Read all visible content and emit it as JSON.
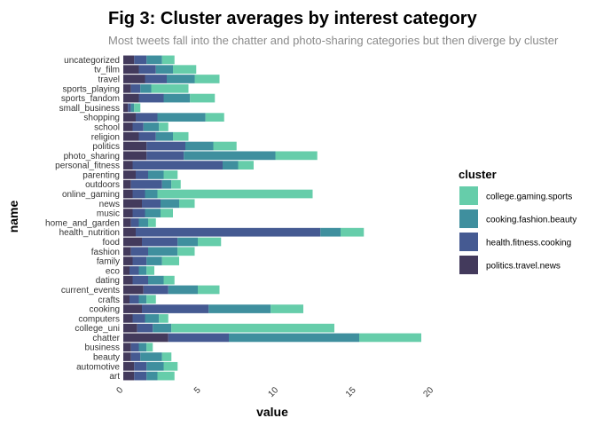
{
  "chart_data": {
    "type": "bar",
    "orientation": "horizontal",
    "stacked": true,
    "title": "Fig 3: Cluster averages by interest category",
    "subtitle": "Most tweets fall into the chatter and photo-sharing categories but then diverge by cluster",
    "xlabel": "value",
    "ylabel": "name",
    "xlim": [
      0,
      20
    ],
    "x_ticks": [
      "0",
      "5",
      "10",
      "15",
      "20"
    ],
    "x_tick_values": [
      0,
      5,
      10,
      15,
      20
    ],
    "grid": false,
    "legend_title": "cluster",
    "legend_position": "right",
    "categories": [
      "uncategorized",
      "tv_film",
      "travel",
      "sports_playing",
      "sports_fandom",
      "small_business",
      "shopping",
      "school",
      "religion",
      "politics",
      "photo_sharing",
      "personal_fitness",
      "parenting",
      "outdoors",
      "online_gaming",
      "news",
      "music",
      "home_and_garden",
      "health_nutrition",
      "food",
      "fashion",
      "family",
      "eco",
      "dating",
      "current_events",
      "crafts",
      "cooking",
      "computers",
      "college_uni",
      "chatter",
      "business",
      "beauty",
      "automotive",
      "art"
    ],
    "series": [
      {
        "name": "politics.travel.news",
        "color": "#433a5c",
        "values": [
          0.7,
          1.0,
          1.4,
          0.5,
          1.0,
          0.3,
          0.8,
          0.6,
          1.0,
          1.5,
          1.5,
          0.6,
          0.8,
          0.5,
          0.6,
          1.2,
          0.6,
          0.5,
          0.8,
          1.2,
          0.5,
          0.6,
          0.4,
          0.6,
          1.3,
          0.4,
          1.2,
          0.6,
          0.9,
          2.9,
          0.5,
          0.5,
          0.7,
          0.7
        ]
      },
      {
        "name": "health.fitness.cooking",
        "color": "#455a92",
        "values": [
          0.8,
          1.1,
          1.4,
          0.6,
          1.6,
          0.2,
          1.4,
          0.7,
          1.1,
          2.5,
          2.4,
          5.8,
          0.8,
          2.0,
          0.8,
          1.2,
          0.8,
          0.5,
          11.9,
          2.3,
          1.1,
          0.9,
          0.6,
          1.0,
          1.6,
          0.6,
          4.3,
          0.8,
          1.0,
          3.9,
          0.5,
          0.6,
          0.8,
          0.8
        ]
      },
      {
        "name": "cooking.fashion.beauty",
        "color": "#3f8f9e",
        "values": [
          1.0,
          1.1,
          1.8,
          0.7,
          1.7,
          0.2,
          3.1,
          1.0,
          1.1,
          1.8,
          5.9,
          1.0,
          1.0,
          0.6,
          0.8,
          1.2,
          1.0,
          0.6,
          1.3,
          1.3,
          1.9,
          1.0,
          0.5,
          1.0,
          1.9,
          0.5,
          4.0,
          0.9,
          1.2,
          8.4,
          0.5,
          1.4,
          1.1,
          0.7
        ]
      },
      {
        "name": "college.gaming.sports",
        "color": "#66cdaa",
        "values": [
          0.8,
          1.5,
          1.6,
          2.4,
          1.6,
          0.4,
          1.2,
          0.6,
          1.0,
          1.5,
          2.7,
          1.0,
          0.9,
          0.6,
          10.0,
          1.0,
          0.8,
          0.5,
          1.5,
          1.5,
          1.1,
          1.1,
          0.5,
          0.7,
          1.4,
          0.6,
          2.1,
          0.6,
          10.5,
          4.0,
          0.4,
          0.6,
          0.9,
          1.1
        ]
      }
    ]
  }
}
